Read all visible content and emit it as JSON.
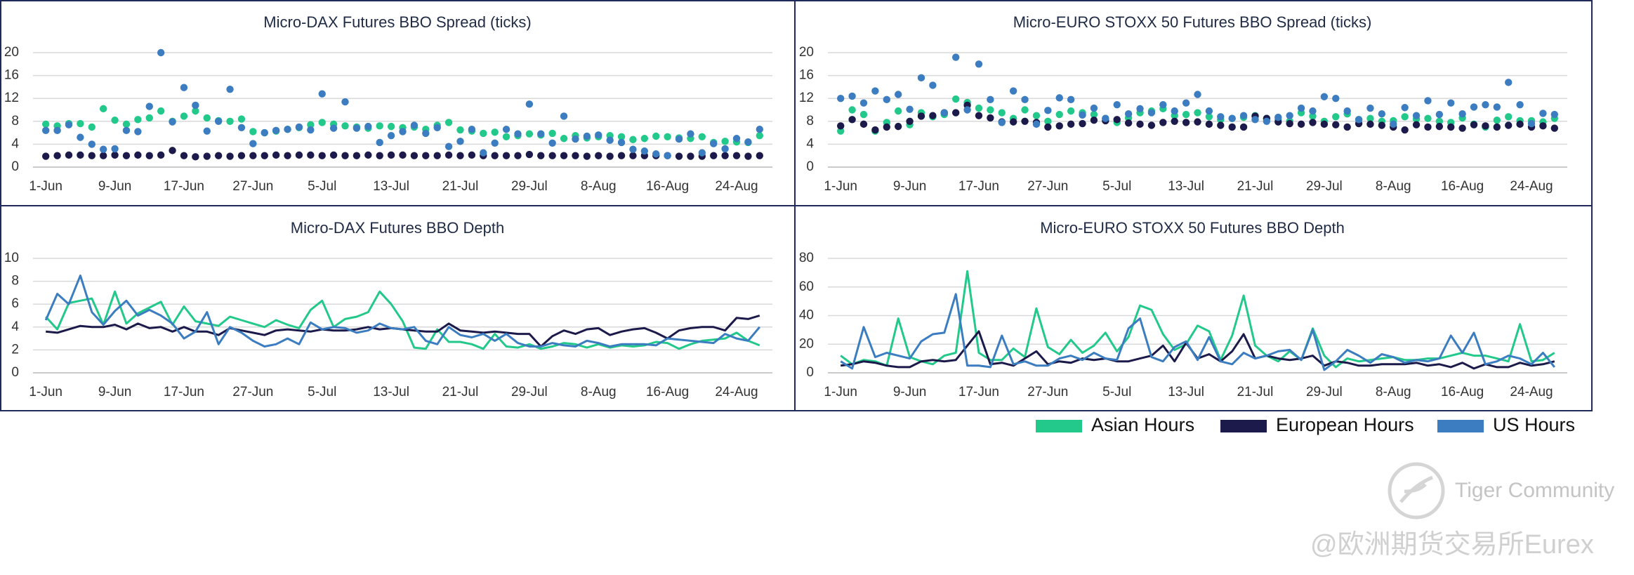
{
  "chart_data": [
    {
      "type": "scatter",
      "title": "Micro-DAX Futures BBO Spread (ticks)",
      "categories": [
        "1-Jun",
        null,
        null,
        null,
        null,
        null,
        "9-Jun",
        null,
        null,
        null,
        null,
        null,
        "17-Jun",
        null,
        null,
        null,
        null,
        null,
        "27-Jun",
        null,
        null,
        null,
        null,
        null,
        "5-Jul",
        null,
        null,
        null,
        null,
        null,
        "13-Jul",
        null,
        null,
        null,
        null,
        null,
        "21-Jul",
        null,
        null,
        null,
        null,
        null,
        "29-Jul",
        null,
        null,
        null,
        null,
        null,
        "8-Aug",
        null,
        null,
        null,
        null,
        null,
        "16-Aug",
        null,
        null,
        null,
        null,
        null,
        "24-Aug",
        null,
        null
      ],
      "ylim": [
        0,
        20
      ],
      "yticks": [
        0,
        4,
        8,
        12,
        16,
        20
      ],
      "grid": true,
      "series": [
        {
          "color": "#22c98b",
          "values": [
            7.5,
            7.2,
            7.6,
            7.6,
            7.0,
            10.2,
            8.2,
            7.5,
            8.3,
            8.6,
            9.8,
            8.0,
            8.9,
            9.8,
            8.6,
            8.1,
            8.0,
            8.4,
            6.2,
            6.0,
            6.3,
            6.6,
            6.9,
            7.4,
            7.8,
            7.5,
            7.2,
            7.0,
            6.8,
            7.2,
            7.1,
            6.9,
            7.0,
            6.6,
            7.3,
            7.8,
            6.5,
            6.3,
            5.9,
            6.1,
            5.3,
            5.5,
            5.8,
            5.6,
            5.9,
            5.0,
            5.5,
            5.1,
            5.3,
            5.5,
            5.3,
            4.8,
            5.0,
            5.4,
            5.3,
            5.1,
            5.0,
            5.3,
            4.3,
            4.5,
            4.4,
            4.3,
            5.5
          ]
        },
        {
          "color": "#1b1a4a",
          "values": [
            1.9,
            2.0,
            2.1,
            2.1,
            2.0,
            2.0,
            2.1,
            2.0,
            2.1,
            2.0,
            2.1,
            2.9,
            2.0,
            1.8,
            1.9,
            2.0,
            1.9,
            2.0,
            2.0,
            2.0,
            2.1,
            2.0,
            2.1,
            2.1,
            2.0,
            2.1,
            2.0,
            2.0,
            2.1,
            2.0,
            2.1,
            2.1,
            2.0,
            2.0,
            2.0,
            2.1,
            2.0,
            2.1,
            2.0,
            2.0,
            2.0,
            2.0,
            2.2,
            2.0,
            2.0,
            2.0,
            2.0,
            1.9,
            2.0,
            1.9,
            2.0,
            2.0,
            2.0,
            2.0,
            2.0,
            1.9,
            1.9,
            1.9,
            2.0,
            2.0,
            2.0,
            1.9,
            2.0
          ]
        },
        {
          "color": "#3b7dc0",
          "values": [
            6.4,
            6.4,
            7.4,
            5.2,
            4.0,
            3.1,
            3.2,
            6.4,
            6.2,
            10.6,
            20.0,
            7.9,
            13.9,
            10.8,
            6.3,
            8.0,
            13.6,
            6.9,
            4.1,
            6.0,
            6.4,
            6.6,
            7.0,
            6.5,
            12.8,
            6.8,
            11.4,
            6.8,
            7.1,
            4.3,
            5.5,
            6.2,
            7.3,
            5.9,
            6.9,
            3.6,
            4.5,
            6.6,
            2.5,
            4.2,
            6.6,
            5.8,
            11.0,
            5.8,
            4.2,
            8.9,
            4.9,
            5.4,
            5.6,
            4.7,
            4.3,
            3.1,
            2.8,
            2.3,
            2.0,
            4.9,
            5.8,
            2.5,
            4.1,
            3.2,
            5.0,
            4.4,
            6.6
          ]
        }
      ]
    },
    {
      "type": "scatter",
      "title": "Micro-EURO STOXX 50 Futures BBO Spread (ticks)",
      "categories": [
        "1-Jun",
        null,
        null,
        null,
        null,
        null,
        "9-Jun",
        null,
        null,
        null,
        null,
        null,
        "17-Jun",
        null,
        null,
        null,
        null,
        null,
        "27-Jun",
        null,
        null,
        null,
        null,
        null,
        "5-Jul",
        null,
        null,
        null,
        null,
        null,
        "13-Jul",
        null,
        null,
        null,
        null,
        null,
        "21-Jul",
        null,
        null,
        null,
        null,
        null,
        "29-Jul",
        null,
        null,
        null,
        null,
        null,
        "8-Aug",
        null,
        null,
        null,
        null,
        null,
        "16-Aug",
        null,
        null,
        null,
        null,
        null,
        "24-Aug",
        null,
        null
      ],
      "ylim": [
        0,
        20
      ],
      "yticks": [
        0,
        4,
        8,
        12,
        16,
        20
      ],
      "grid": true,
      "series": [
        {
          "color": "#22c98b",
          "values": [
            6.3,
            10.0,
            9.2,
            6.3,
            7.8,
            9.8,
            7.4,
            9.5,
            8.8,
            9.2,
            11.9,
            11.3,
            10.3,
            10.0,
            9.5,
            8.5,
            10.0,
            9.0,
            8.0,
            9.2,
            9.8,
            9.5,
            9.2,
            8.5,
            7.8,
            8.6,
            9.5,
            9.8,
            10.2,
            9.0,
            9.2,
            9.5,
            8.8,
            8.3,
            8.5,
            8.7,
            9.0,
            8.5,
            8.3,
            8.0,
            9.5,
            8.9,
            8.0,
            8.8,
            9.3,
            8.3,
            8.5,
            8.0,
            8.1,
            8.8,
            8.4,
            8.5,
            8.0,
            7.8,
            8.6,
            7.5,
            7.0,
            8.2,
            8.8,
            8.1,
            8.1,
            7.9,
            8.5
          ]
        },
        {
          "color": "#1b1a4a",
          "values": [
            7.2,
            8.3,
            7.5,
            6.5,
            7.0,
            7.1,
            8.0,
            8.9,
            9.0,
            9.5,
            9.5,
            10.8,
            9.0,
            8.6,
            7.9,
            7.9,
            8.0,
            7.8,
            7.0,
            7.2,
            7.5,
            7.6,
            8.2,
            8.1,
            8.3,
            7.7,
            7.5,
            7.3,
            7.8,
            8.0,
            7.8,
            7.9,
            7.5,
            7.3,
            7.0,
            7.0,
            8.9,
            8.5,
            7.9,
            7.6,
            7.5,
            7.8,
            7.5,
            7.4,
            7.0,
            7.6,
            7.5,
            7.3,
            7.0,
            6.5,
            7.4,
            7.0,
            7.1,
            7.0,
            6.8,
            7.4,
            7.2,
            7.0,
            7.3,
            7.5,
            7.0,
            7.2,
            6.8
          ]
        },
        {
          "color": "#3b7dc0",
          "values": [
            12.0,
            12.4,
            11.2,
            13.3,
            11.8,
            12.7,
            10.1,
            15.6,
            14.3,
            9.5,
            19.2,
            10.0,
            18.0,
            11.8,
            7.8,
            13.3,
            11.8,
            7.5,
            9.9,
            12.1,
            11.8,
            9.1,
            10.3,
            8.5,
            10.9,
            9.3,
            10.2,
            9.5,
            10.9,
            9.8,
            11.2,
            12.7,
            9.8,
            8.8,
            8.5,
            9.0,
            8.3,
            8.0,
            8.7,
            9.0,
            10.3,
            9.8,
            12.3,
            12.0,
            9.8,
            8.3,
            10.3,
            9.3,
            7.5,
            10.4,
            9.0,
            11.6,
            9.2,
            11.2,
            9.3,
            10.5,
            10.9,
            10.5,
            14.8,
            10.9,
            7.6,
            9.4,
            9.2
          ]
        }
      ]
    },
    {
      "type": "line",
      "title": "Micro-DAX Futures BBO Depth",
      "categories": [
        "1-Jun",
        null,
        null,
        null,
        null,
        null,
        "9-Jun",
        null,
        null,
        null,
        null,
        null,
        "17-Jun",
        null,
        null,
        null,
        null,
        null,
        "27-Jun",
        null,
        null,
        null,
        null,
        null,
        "5-Jul",
        null,
        null,
        null,
        null,
        null,
        "13-Jul",
        null,
        null,
        null,
        null,
        null,
        "21-Jul",
        null,
        null,
        null,
        null,
        null,
        "29-Jul",
        null,
        null,
        null,
        null,
        null,
        "8-Aug",
        null,
        null,
        null,
        null,
        null,
        "16-Aug",
        null,
        null,
        null,
        null,
        null,
        "24-Aug",
        null,
        null
      ],
      "ylim": [
        0,
        10
      ],
      "yticks": [
        0,
        2,
        4,
        6,
        8,
        10
      ],
      "grid": true,
      "series": [
        {
          "color": "#22c98b",
          "values": [
            4.9,
            3.8,
            6.1,
            6.3,
            6.5,
            4.2,
            7.1,
            4.3,
            5.2,
            5.7,
            6.2,
            4.2,
            5.8,
            4.5,
            4.3,
            4.1,
            4.9,
            4.6,
            4.3,
            4.0,
            4.6,
            4.2,
            3.9,
            5.5,
            6.3,
            4.0,
            4.7,
            4.9,
            5.3,
            7.1,
            6.0,
            4.5,
            2.2,
            2.1,
            3.8,
            2.7,
            2.7,
            2.5,
            2.1,
            3.4,
            2.3,
            2.2,
            2.5,
            2.1,
            2.3,
            2.6,
            2.5,
            2.2,
            2.5,
            2.2,
            2.4,
            2.3,
            2.4,
            2.7,
            2.6,
            2.1,
            2.5,
            2.8,
            2.9,
            3.0,
            3.5,
            2.8,
            2.4
          ]
        },
        {
          "color": "#1b1a4a",
          "values": [
            3.6,
            3.5,
            3.8,
            4.1,
            4.0,
            4.0,
            4.2,
            3.8,
            4.3,
            3.9,
            4.0,
            3.6,
            4.0,
            3.6,
            3.6,
            3.3,
            3.9,
            3.7,
            3.5,
            3.3,
            3.7,
            3.8,
            3.7,
            3.6,
            3.8,
            3.7,
            3.7,
            3.8,
            4.0,
            3.8,
            3.9,
            3.8,
            3.7,
            3.6,
            3.6,
            4.3,
            3.7,
            3.6,
            3.5,
            3.6,
            3.5,
            3.4,
            3.4,
            2.3,
            3.2,
            3.7,
            3.4,
            3.8,
            3.9,
            3.3,
            3.6,
            3.8,
            3.9,
            3.5,
            3.0,
            3.7,
            3.9,
            4.0,
            4.0,
            3.7,
            4.8,
            4.7,
            5.0
          ]
        },
        {
          "color": "#3b7dc0",
          "values": [
            4.6,
            6.9,
            6.0,
            8.5,
            5.3,
            4.2,
            5.4,
            6.3,
            5.0,
            5.5,
            5.0,
            4.3,
            3.0,
            3.6,
            5.3,
            2.5,
            4.0,
            3.5,
            2.8,
            2.3,
            2.5,
            3.0,
            2.5,
            4.4,
            3.8,
            4.0,
            3.9,
            3.5,
            3.7,
            4.3,
            3.9,
            3.8,
            4.0,
            2.8,
            2.5,
            4.0,
            3.3,
            3.1,
            3.4,
            2.8,
            3.4,
            2.6,
            2.3,
            2.3,
            2.6,
            2.4,
            2.3,
            2.8,
            2.6,
            2.3,
            2.5,
            2.5,
            2.5,
            2.4,
            3.0,
            2.9,
            2.8,
            2.7,
            2.6,
            3.4,
            3.0,
            2.8,
            4.0
          ]
        }
      ]
    },
    {
      "type": "line",
      "title": "Micro-EURO STOXX 50 Futures BBO Depth",
      "categories": [
        "1-Jun",
        null,
        null,
        null,
        null,
        null,
        "9-Jun",
        null,
        null,
        null,
        null,
        null,
        "17-Jun",
        null,
        null,
        null,
        null,
        null,
        "27-Jun",
        null,
        null,
        null,
        null,
        null,
        "5-Jul",
        null,
        null,
        null,
        null,
        null,
        "13-Jul",
        null,
        null,
        null,
        null,
        null,
        "21-Jul",
        null,
        null,
        null,
        null,
        null,
        "29-Jul",
        null,
        null,
        null,
        null,
        null,
        "8-Aug",
        null,
        null,
        null,
        null,
        null,
        "16-Aug",
        null,
        null,
        null,
        null,
        null,
        "24-Aug",
        null,
        null
      ],
      "ylim": [
        0,
        80
      ],
      "yticks": [
        0,
        20,
        40,
        60,
        80
      ],
      "grid": true,
      "series": [
        {
          "name": "Asian Hours",
          "color": "#22c98b",
          "values": [
            12,
            6,
            9,
            8,
            5,
            38,
            11,
            8,
            6,
            12,
            14,
            71,
            14,
            9,
            9,
            17,
            11,
            45,
            18,
            13,
            23,
            14,
            19,
            28,
            15,
            25,
            47,
            44,
            27,
            16,
            20,
            33,
            29,
            9,
            26,
            54,
            19,
            12,
            8,
            15,
            9,
            31,
            12,
            4,
            10,
            8,
            9,
            10,
            11,
            9,
            9,
            10,
            10,
            12,
            14,
            12,
            12,
            10,
            8,
            34,
            8,
            9,
            14
          ]
        },
        {
          "name": "European Hours",
          "color": "#1b1a4a",
          "values": [
            5,
            6,
            8,
            7,
            5,
            4,
            4,
            8,
            9,
            8,
            9,
            19,
            29,
            6,
            7,
            5,
            10,
            15,
            6,
            8,
            7,
            10,
            9,
            10,
            8,
            8,
            10,
            12,
            19,
            8,
            21,
            10,
            13,
            8,
            15,
            27,
            10,
            12,
            10,
            9,
            10,
            12,
            5,
            8,
            7,
            5,
            5,
            6,
            6,
            6,
            7,
            5,
            6,
            4,
            7,
            3,
            6,
            4,
            4,
            7,
            5,
            6,
            8
          ]
        },
        {
          "name": "US Hours",
          "color": "#3b7dc0",
          "values": [
            8,
            3,
            32,
            11,
            14,
            12,
            10,
            22,
            27,
            28,
            55,
            5,
            5,
            4,
            26,
            6,
            8,
            5,
            5,
            10,
            12,
            9,
            14,
            10,
            9,
            31,
            38,
            11,
            8,
            18,
            22,
            9,
            25,
            8,
            6,
            14,
            10,
            12,
            15,
            16,
            9,
            30,
            2,
            8,
            16,
            12,
            7,
            13,
            11,
            7,
            9,
            8,
            10,
            26,
            14,
            28,
            6,
            8,
            12,
            10,
            6,
            14,
            4
          ]
        }
      ]
    }
  ],
  "watermark": {
    "brand": "Tiger Community",
    "handle": "@欧洲期货交易所Eurex"
  }
}
